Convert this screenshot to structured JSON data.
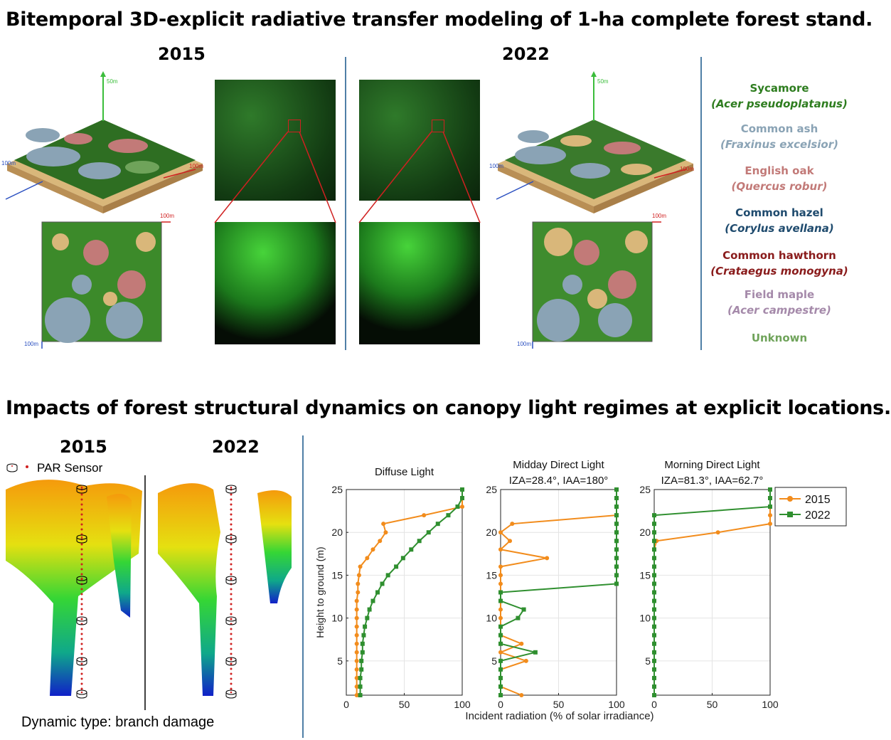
{
  "top": {
    "title": "Bitemporal 3D-explicit radiative transfer modeling of 1-ha complete forest stand.",
    "year_left": "2015",
    "year_right": "2022",
    "axis_z": "50m",
    "axis_x": "100m",
    "axis_y": "100m",
    "species": [
      {
        "common": "Sycamore",
        "latin": "(Acer pseudoplatanus)",
        "color": "#2e7d1f"
      },
      {
        "common": "Common ash",
        "latin": "(Fraxinus excelsior)",
        "color": "#8aa3b5"
      },
      {
        "common": "English oak",
        "latin": "(Quercus robur)",
        "color": "#c27a78"
      },
      {
        "common": "Common hazel",
        "latin": "(Corylus avellana)",
        "color": "#1f4b6e"
      },
      {
        "common": "Common hawthorn",
        "latin": "(Crataegus monogyna)",
        "color": "#8a1c1c"
      },
      {
        "common": "Field maple",
        "latin": "(Acer campestre)",
        "color": "#a58aaa"
      },
      {
        "common": "Unknown",
        "latin": "",
        "color": "#6fa35a"
      }
    ]
  },
  "bottom": {
    "title": "Impacts of forest structural dynamics on canopy light regimes at explicit locations.",
    "year_left": "2015",
    "year_right": "2022",
    "sensor_label": "PAR Sensor",
    "dynamic_type": "Dynamic type: branch damage"
  },
  "chart_data": [
    {
      "type": "line",
      "title": "Diffuse Light",
      "subtitle": "",
      "xlabel": "Incident radiation (% of solar irradiance)",
      "ylabel": "Height to ground (m)",
      "xlim": [
        0,
        100
      ],
      "ylim": [
        1,
        25
      ],
      "xticks": [
        0,
        50,
        100
      ],
      "yticks": [
        5,
        10,
        15,
        20,
        25
      ],
      "grid": true,
      "series": [
        {
          "name": "2015",
          "color": "#f28c1c",
          "marker": "circle",
          "points": [
            [
              9,
              1
            ],
            [
              9,
              2
            ],
            [
              9,
              3
            ],
            [
              9,
              4
            ],
            [
              9,
              5
            ],
            [
              9,
              6
            ],
            [
              9,
              7
            ],
            [
              9,
              8
            ],
            [
              9,
              9
            ],
            [
              9,
              10
            ],
            [
              9,
              11
            ],
            [
              9,
              12
            ],
            [
              10,
              13
            ],
            [
              10,
              14
            ],
            [
              11,
              15
            ],
            [
              12,
              16
            ],
            [
              18,
              17
            ],
            [
              23,
              18
            ],
            [
              29,
              19
            ],
            [
              34,
              20
            ],
            [
              32,
              21
            ],
            [
              67,
              22
            ],
            [
              100,
              23
            ],
            [
              100,
              24
            ],
            [
              100,
              25
            ]
          ]
        },
        {
          "name": "2022",
          "color": "#2f8f2f",
          "marker": "square",
          "points": [
            [
              12,
              1
            ],
            [
              12,
              2
            ],
            [
              12,
              3
            ],
            [
              13,
              4
            ],
            [
              13,
              5
            ],
            [
              14,
              6
            ],
            [
              14,
              7
            ],
            [
              15,
              8
            ],
            [
              16,
              9
            ],
            [
              18,
              10
            ],
            [
              20,
              11
            ],
            [
              23,
              12
            ],
            [
              27,
              13
            ],
            [
              31,
              14
            ],
            [
              36,
              15
            ],
            [
              43,
              16
            ],
            [
              49,
              17
            ],
            [
              56,
              18
            ],
            [
              63,
              19
            ],
            [
              71,
              20
            ],
            [
              79,
              21
            ],
            [
              88,
              22
            ],
            [
              96,
              23
            ],
            [
              100,
              24
            ],
            [
              100,
              25
            ]
          ]
        }
      ]
    },
    {
      "type": "line",
      "title": "Midday Direct Light",
      "subtitle": "IZA=28.4°, IAA=180°",
      "xlim": [
        0,
        100
      ],
      "ylim": [
        1,
        25
      ],
      "xticks": [
        0,
        50,
        100
      ],
      "yticks": [
        5,
        10,
        15,
        20,
        25
      ],
      "grid": true,
      "series": [
        {
          "name": "2015",
          "color": "#f28c1c",
          "marker": "circle",
          "points": [
            [
              18,
              1
            ],
            [
              0,
              2
            ],
            [
              0,
              3
            ],
            [
              0,
              4
            ],
            [
              22,
              5
            ],
            [
              0,
              6
            ],
            [
              18,
              7
            ],
            [
              0,
              8
            ],
            [
              0,
              9
            ],
            [
              0,
              10
            ],
            [
              0,
              11
            ],
            [
              0,
              12
            ],
            [
              0,
              13
            ],
            [
              0,
              14
            ],
            [
              0,
              15
            ],
            [
              0,
              16
            ],
            [
              40,
              17
            ],
            [
              0,
              18
            ],
            [
              8,
              19
            ],
            [
              0,
              20
            ],
            [
              10,
              21
            ],
            [
              100,
              22
            ],
            [
              100,
              23
            ],
            [
              100,
              24
            ],
            [
              100,
              25
            ]
          ]
        },
        {
          "name": "2022",
          "color": "#2f8f2f",
          "marker": "square",
          "points": [
            [
              0,
              1
            ],
            [
              0,
              2
            ],
            [
              0,
              3
            ],
            [
              0,
              4
            ],
            [
              0,
              5
            ],
            [
              30,
              6
            ],
            [
              0,
              7
            ],
            [
              0,
              8
            ],
            [
              0,
              9
            ],
            [
              15,
              10
            ],
            [
              20,
              11
            ],
            [
              0,
              12
            ],
            [
              0,
              13
            ],
            [
              100,
              14
            ],
            [
              100,
              15
            ],
            [
              100,
              16
            ],
            [
              100,
              17
            ],
            [
              100,
              18
            ],
            [
              100,
              19
            ],
            [
              100,
              20
            ],
            [
              100,
              21
            ],
            [
              100,
              22
            ],
            [
              100,
              23
            ],
            [
              100,
              24
            ],
            [
              100,
              25
            ]
          ]
        }
      ]
    },
    {
      "type": "line",
      "title": "Morning Direct Light",
      "subtitle": "IZA=81.3°, IAA=62.7°",
      "xlim": [
        0,
        100
      ],
      "ylim": [
        1,
        25
      ],
      "xticks": [
        0,
        50,
        100
      ],
      "yticks": [
        5,
        10,
        15,
        20,
        25
      ],
      "grid": true,
      "legend": {
        "placement": "right",
        "entries": [
          "2015",
          "2022"
        ]
      },
      "series": [
        {
          "name": "2015",
          "color": "#f28c1c",
          "marker": "circle",
          "points": [
            [
              0,
              1
            ],
            [
              0,
              2
            ],
            [
              0,
              3
            ],
            [
              0,
              4
            ],
            [
              0,
              5
            ],
            [
              0,
              6
            ],
            [
              0,
              7
            ],
            [
              0,
              8
            ],
            [
              0,
              9
            ],
            [
              0,
              10
            ],
            [
              0,
              11
            ],
            [
              0,
              12
            ],
            [
              0,
              13
            ],
            [
              0,
              14
            ],
            [
              0,
              15
            ],
            [
              0,
              16
            ],
            [
              0,
              17
            ],
            [
              0,
              18
            ],
            [
              2,
              19
            ],
            [
              55,
              20
            ],
            [
              100,
              21
            ],
            [
              100,
              22
            ],
            [
              100,
              23
            ],
            [
              100,
              24
            ],
            [
              100,
              25
            ]
          ]
        },
        {
          "name": "2022",
          "color": "#2f8f2f",
          "marker": "square",
          "points": [
            [
              0,
              1
            ],
            [
              0,
              2
            ],
            [
              0,
              3
            ],
            [
              0,
              4
            ],
            [
              0,
              5
            ],
            [
              0,
              6
            ],
            [
              0,
              7
            ],
            [
              0,
              8
            ],
            [
              0,
              9
            ],
            [
              0,
              10
            ],
            [
              0,
              11
            ],
            [
              0,
              12
            ],
            [
              0,
              13
            ],
            [
              0,
              14
            ],
            [
              0,
              15
            ],
            [
              0,
              16
            ],
            [
              0,
              17
            ],
            [
              0,
              18
            ],
            [
              0,
              19
            ],
            [
              0,
              20
            ],
            [
              0,
              21
            ],
            [
              0,
              22
            ],
            [
              100,
              23
            ],
            [
              100,
              24
            ],
            [
              100,
              25
            ]
          ]
        }
      ]
    }
  ]
}
